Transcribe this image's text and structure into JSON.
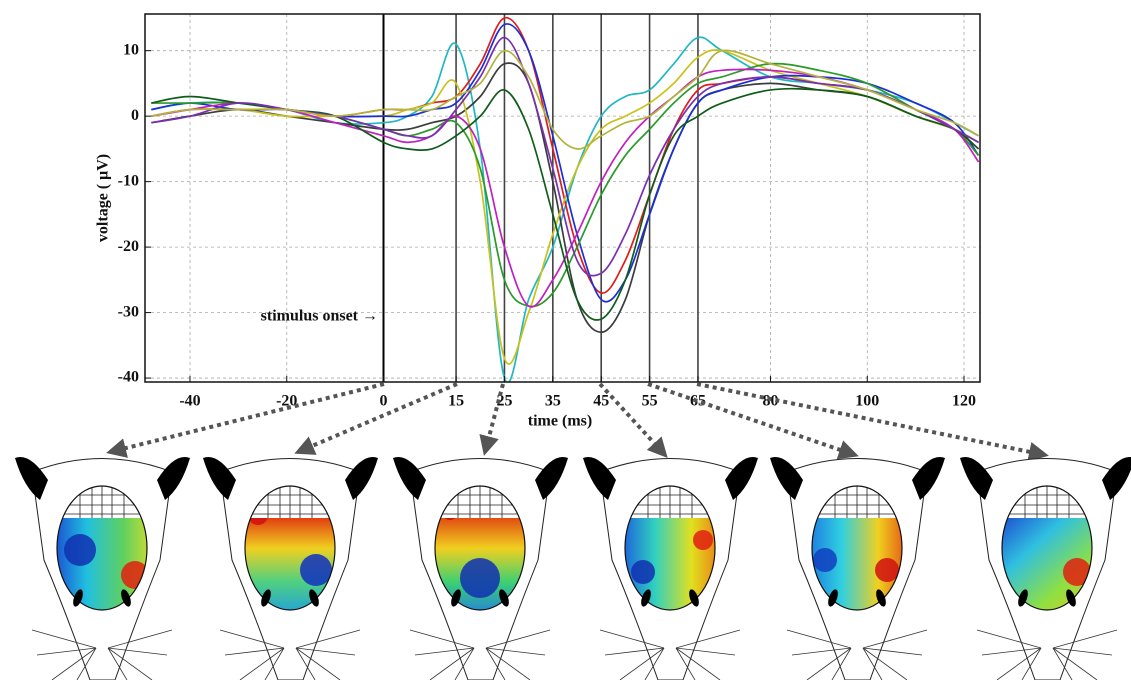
{
  "chart_data": {
    "type": "line",
    "xlabel": "time (ms)",
    "ylabel": "voltage ( μV)",
    "annotation": "stimulus onset →",
    "xlim": [
      -49.3,
      123.3
    ],
    "ylim": [
      -40.6,
      15.6
    ],
    "xticks": [
      -40,
      -20,
      0,
      15,
      25,
      35,
      45,
      55,
      65,
      80,
      100,
      120
    ],
    "yticks": [
      -40,
      -30,
      -20,
      -10,
      0,
      10
    ],
    "markers": [
      0,
      15,
      25,
      35,
      45,
      55,
      65
    ],
    "grid": true,
    "x": [
      -48,
      -40,
      -30,
      -20,
      -10,
      0,
      5,
      10,
      15,
      20,
      25,
      30,
      35,
      40,
      45,
      50,
      55,
      60,
      65,
      70,
      80,
      90,
      100,
      110,
      118,
      123
    ],
    "series": [
      {
        "color": "#1fb8c4",
        "values": [
          1,
          2,
          2,
          1,
          -1,
          -1,
          0,
          3,
          11,
          -5,
          -40,
          -28,
          -20,
          -8,
          0,
          3,
          4,
          8,
          12,
          10,
          6,
          5,
          4,
          2,
          -1,
          -3
        ]
      },
      {
        "color": "#e01b1b",
        "values": [
          0,
          1,
          1,
          1,
          0,
          1,
          1,
          2,
          3,
          8,
          15,
          10,
          -5,
          -20,
          -27,
          -22,
          -12,
          -2,
          4,
          5,
          6,
          5,
          4,
          1,
          -2,
          -5
        ]
      },
      {
        "color": "#3c3c3c",
        "values": [
          -1,
          0,
          1,
          0,
          -1,
          -2,
          -2,
          -1,
          0,
          3,
          8,
          5,
          -10,
          -28,
          -33,
          -28,
          -15,
          -5,
          2,
          4,
          5,
          4,
          3,
          0,
          -2,
          -4
        ]
      },
      {
        "color": "#c8c21a",
        "values": [
          0,
          1,
          1,
          0,
          0,
          0,
          1,
          2,
          5,
          -10,
          -37,
          -30,
          -18,
          -8,
          -2,
          0,
          2,
          5,
          9,
          10,
          7,
          5,
          3,
          0,
          -2,
          -4
        ]
      },
      {
        "color": "#1a2fd6",
        "values": [
          1,
          2,
          1,
          1,
          0,
          0,
          0,
          1,
          2,
          7,
          14,
          10,
          -3,
          -18,
          -28,
          -25,
          -15,
          -5,
          2,
          4,
          6,
          6,
          5,
          2,
          -1,
          -6
        ]
      },
      {
        "color": "#2a9a2a",
        "values": [
          2,
          2,
          2,
          1,
          0,
          -2,
          -3,
          -2,
          -1,
          -8,
          -25,
          -29,
          -27,
          -20,
          -12,
          -6,
          -2,
          2,
          5,
          6,
          8,
          7,
          5,
          1,
          -2,
          -6
        ]
      },
      {
        "color": "#c21fc2",
        "values": [
          0,
          1,
          2,
          1,
          -1,
          -3,
          -4,
          -3,
          0,
          -5,
          -20,
          -29,
          -25,
          -18,
          -10,
          -4,
          0,
          3,
          6,
          7,
          7,
          6,
          4,
          1,
          -2,
          -7
        ]
      },
      {
        "color": "#0f5c1a",
        "values": [
          2,
          3,
          2,
          1,
          0,
          -4,
          -5,
          -5,
          -3,
          0,
          4,
          -2,
          -15,
          -28,
          -31,
          -25,
          -12,
          -3,
          0,
          2,
          4,
          4,
          3,
          0,
          -2,
          -5
        ]
      },
      {
        "color": "#7a2fb0",
        "values": [
          -1,
          0,
          2,
          1,
          0,
          -2,
          -3,
          -3,
          1,
          6,
          12,
          5,
          -8,
          -22,
          -24,
          -18,
          -9,
          -2,
          3,
          5,
          6,
          5,
          4,
          1,
          -2,
          -4
        ]
      },
      {
        "color": "#b4b43c",
        "values": [
          0,
          1,
          1,
          1,
          0,
          1,
          1,
          1,
          3,
          5,
          10,
          6,
          -2,
          -5,
          -3,
          -1,
          0,
          3,
          6,
          10,
          8,
          6,
          4,
          1,
          -1,
          -3
        ]
      }
    ]
  }
}
